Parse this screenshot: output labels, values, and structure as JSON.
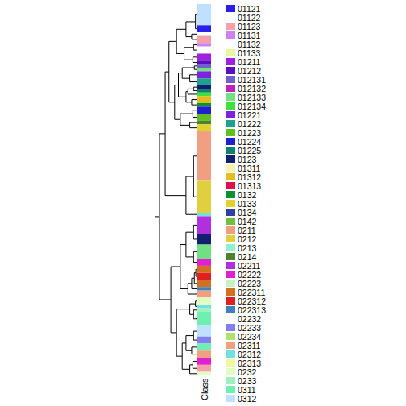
{
  "chart_data": {
    "type": "dendrogram",
    "axis_label": "Class",
    "tick_labels": false,
    "classes": [
      {
        "name": "01121",
        "color": "#2a1fe8"
      },
      {
        "name": "01122",
        "color": "#ffffff"
      },
      {
        "name": "01123",
        "color": "#f4a0a8"
      },
      {
        "name": "01131",
        "color": "#d080f0"
      },
      {
        "name": "01132",
        "color": "#ffffff"
      },
      {
        "name": "01133",
        "color": "#e8f8a0"
      },
      {
        "name": "01211",
        "color": "#a020e0"
      },
      {
        "name": "01212",
        "color": "#5a10c0"
      },
      {
        "name": "012131",
        "color": "#7060c8"
      },
      {
        "name": "012132",
        "color": "#c020c0"
      },
      {
        "name": "012133",
        "color": "#70e080"
      },
      {
        "name": "012134",
        "color": "#40e040"
      },
      {
        "name": "01221",
        "color": "#8020e0"
      },
      {
        "name": "01222",
        "color": "#20a090"
      },
      {
        "name": "01223",
        "color": "#60c020"
      },
      {
        "name": "01224",
        "color": "#2020d0"
      },
      {
        "name": "01225",
        "color": "#108070"
      },
      {
        "name": "0123",
        "color": "#102070"
      },
      {
        "name": "01311",
        "color": "#fff0b0"
      },
      {
        "name": "01312",
        "color": "#e0c020"
      },
      {
        "name": "01313",
        "color": "#e01050"
      },
      {
        "name": "0132",
        "color": "#109030"
      },
      {
        "name": "0133",
        "color": "#e0d030"
      },
      {
        "name": "0134",
        "color": "#3040a0"
      },
      {
        "name": "0142",
        "color": "#70c040"
      },
      {
        "name": "0211",
        "color": "#f0a080"
      },
      {
        "name": "0212",
        "color": "#e0d040"
      },
      {
        "name": "0213",
        "color": "#90f0d0"
      },
      {
        "name": "0214",
        "color": "#508030"
      },
      {
        "name": "02211",
        "color": "#b030e0"
      },
      {
        "name": "02222",
        "color": "#e020d0"
      },
      {
        "name": "02223",
        "color": "#c8f0c0"
      },
      {
        "name": "022311",
        "color": "#d07020"
      },
      {
        "name": "022312",
        "color": "#e02020"
      },
      {
        "name": "022313",
        "color": "#4080c0"
      },
      {
        "name": "02232",
        "color": "#ffffff"
      },
      {
        "name": "02233",
        "color": "#8080f0"
      },
      {
        "name": "02234",
        "color": "#b0e070"
      },
      {
        "name": "02311",
        "color": "#f0a080"
      },
      {
        "name": "02312",
        "color": "#70e0e0"
      },
      {
        "name": "02313",
        "color": "#f0f8a0"
      },
      {
        "name": "0232",
        "color": "#e0ffc0"
      },
      {
        "name": "0233",
        "color": "#a0f0c0"
      },
      {
        "name": "0311",
        "color": "#70f0b0"
      },
      {
        "name": "0312",
        "color": "#c0e0ff"
      }
    ],
    "leaves": [
      {
        "class": "0312",
        "n": 6
      },
      {
        "class": "01121",
        "n": 2
      },
      {
        "class": "02232",
        "n": 1
      },
      {
        "class": "01123",
        "n": 2
      },
      {
        "class": "01131",
        "n": 1
      },
      {
        "class": "01132",
        "n": 2
      },
      {
        "class": "01211",
        "n": 2
      },
      {
        "class": "01212",
        "n": 1
      },
      {
        "class": "012131",
        "n": 1
      },
      {
        "class": "012133",
        "n": 1
      },
      {
        "class": "01221",
        "n": 2
      },
      {
        "class": "01222",
        "n": 2
      },
      {
        "class": "0123",
        "n": 1
      },
      {
        "class": "01225",
        "n": 1
      },
      {
        "class": "012134",
        "n": 1
      },
      {
        "class": "01312",
        "n": 2
      },
      {
        "class": "0132",
        "n": 1
      },
      {
        "class": "01224",
        "n": 2
      },
      {
        "class": "01223",
        "n": 2
      },
      {
        "class": "0214",
        "n": 1
      },
      {
        "class": "0133",
        "n": 2
      },
      {
        "class": "0211",
        "n": 14
      },
      {
        "class": "0212",
        "n": 9
      },
      {
        "class": "02312",
        "n": 1
      },
      {
        "class": "02211",
        "n": 5
      },
      {
        "class": "0123",
        "n": 3
      },
      {
        "class": "012133",
        "n": 4
      },
      {
        "class": "02222",
        "n": 2
      },
      {
        "class": "022311",
        "n": 2
      },
      {
        "class": "022312",
        "n": 2
      },
      {
        "class": "022311",
        "n": 2
      },
      {
        "class": "022313",
        "n": 1
      },
      {
        "class": "02311",
        "n": 2
      },
      {
        "class": "0232",
        "n": 2
      },
      {
        "class": "02312",
        "n": 1
      },
      {
        "class": "0233",
        "n": 1
      },
      {
        "class": "0311",
        "n": 4
      },
      {
        "class": "0312",
        "n": 3
      },
      {
        "class": "02233",
        "n": 2
      },
      {
        "class": "0311",
        "n": 2
      },
      {
        "class": "02311",
        "n": 2
      },
      {
        "class": "02222",
        "n": 2
      },
      {
        "class": "01123",
        "n": 2
      },
      {
        "class": "0232",
        "n": 1
      }
    ],
    "tree": {
      "h": 1,
      "c": [
        {
          "h": 0.85,
          "c": [
            {
              "h": 0.75,
              "c": [
                {
                  "h": 0.55,
                  "c": [
                    {
                      "h": 0.3,
                      "c": [
                        {
                          "h": 0.05,
                          "c": [
                            0,
                            1
                          ]
                        },
                        {
                          "h": 0.15,
                          "c": [
                            2,
                            3
                          ]
                        }
                      ]
                    },
                    {
                      "h": 0.35,
                      "c": [
                        {
                          "h": 0.1,
                          "c": [
                            4,
                            5
                          ]
                        },
                        {
                          "h": 0.12,
                          "c": [
                            6,
                            7
                          ]
                        }
                      ]
                    }
                  ]
                },
                {
                  "h": 0.6,
                  "c": [
                    {
                      "h": 0.5,
                      "c": [
                        {
                          "h": 0.4,
                          "c": [
                            {
                              "h": 0.08,
                              "c": [
                                8,
                                9
                              ]
                            },
                            {
                              "h": 0.2,
                              "c": [
                                10,
                                11
                              ]
                            }
                          ]
                        },
                        {
                          "h": 0.3,
                          "c": [
                            {
                              "h": 0.25,
                              "c": [
                                {
                                  "h": 0.1,
                                  "c": [
                                    12,
                                    13
                                  ]
                                },
                                14
                              ]
                            },
                            {
                              "h": 0.15,
                              "c": [
                                15,
                                16
                              ]
                            }
                          ]
                        }
                      ]
                    },
                    {
                      "h": 0.45,
                      "c": [
                        {
                          "h": 0.12,
                          "c": [
                            17,
                            18
                          ]
                        },
                        {
                          "h": 0.2,
                          "c": [
                            19,
                            20
                          ]
                        }
                      ]
                    }
                  ]
                }
              ]
            },
            {
              "h": 0.3,
              "c": [
                {
                  "h": 0.1,
                  "c": [
                    21,
                    22
                  ]
                },
                23
              ]
            }
          ]
        },
        {
          "h": 0.7,
          "c": [
            {
              "h": 0.45,
              "c": [
                {
                  "h": 0.3,
                  "c": [
                    {
                      "h": 0.1,
                      "c": [
                        24,
                        25
                      ]
                    },
                    {
                      "h": 0.1,
                      "c": [
                        26,
                        27
                      ]
                    }
                  ]
                },
                {
                  "h": 0.25,
                  "c": [
                    {
                      "h": 0.15,
                      "c": [
                        {
                          "h": 0.08,
                          "c": [
                            {
                              "h": 0.04,
                              "c": [
                                28,
                                29
                              ]
                            },
                            30
                          ]
                        },
                        31
                      ]
                    },
                    32
                  ]
                }
              ]
            },
            {
              "h": 0.55,
              "c": [
                {
                  "h": 0.2,
                  "c": [
                    {
                      "h": 0.05,
                      "c": [
                        33,
                        34
                      ]
                    },
                    {
                      "h": 0.1,
                      "c": [
                        35,
                        36
                      ]
                    }
                  ]
                },
                {
                  "h": 0.4,
                  "c": [
                    {
                      "h": 0.3,
                      "c": [
                        {
                          "h": 0.1,
                          "c": [
                            37,
                            38
                          ]
                        },
                        {
                          "h": 0.15,
                          "c": [
                            39,
                            40
                          ]
                        }
                      ]
                    },
                    {
                      "h": 0.2,
                      "c": [
                        {
                          "h": 0.12,
                          "c": [
                            41,
                            42
                          ]
                        },
                        43
                      ]
                    }
                  ]
                }
              ]
            }
          ]
        }
      ]
    }
  }
}
